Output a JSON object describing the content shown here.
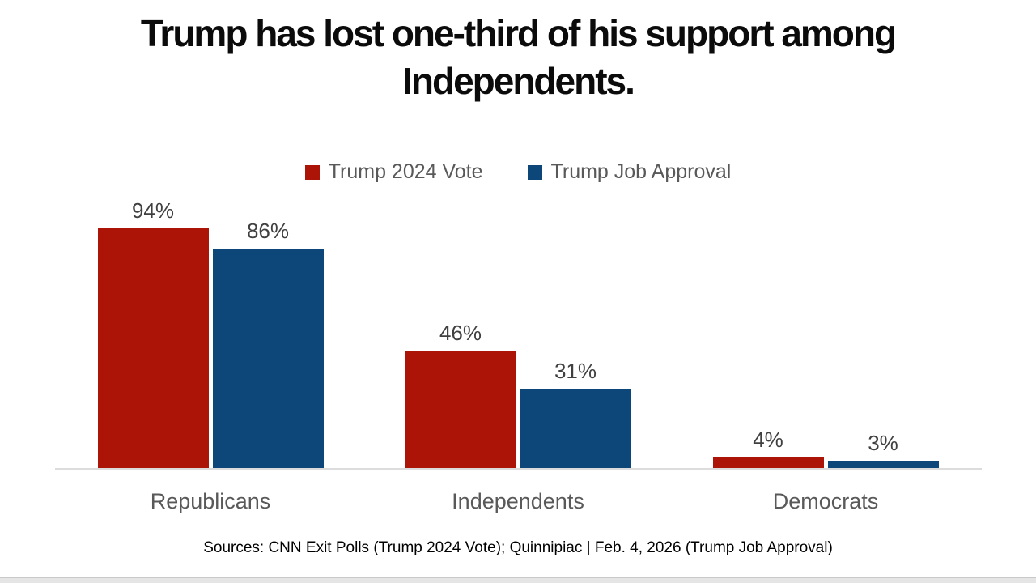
{
  "title": "Trump has lost one-third of his support among Independents.",
  "legend": [
    {
      "label": "Trump 2024 Vote",
      "color": "#ad1408"
    },
    {
      "label": "Trump Job Approval",
      "color": "#0d4679"
    }
  ],
  "chart_data": {
    "type": "bar",
    "title": "Trump has lost one-third of his support among Independents.",
    "categories": [
      "Republicans",
      "Independents",
      "Democrats"
    ],
    "series": [
      {
        "name": "Trump 2024 Vote",
        "color": "#ad1408",
        "values": [
          94,
          46,
          4
        ],
        "value_labels": [
          "94%",
          "46%",
          "4%"
        ]
      },
      {
        "name": "Trump Job Approval",
        "color": "#0d4679",
        "values": [
          86,
          31,
          3
        ],
        "value_labels": [
          "86%",
          "31%",
          "3%"
        ]
      }
    ],
    "xlabel": "",
    "ylabel": "",
    "ylim": [
      0,
      100
    ],
    "grid": false,
    "legend_position": "top",
    "value_label_color": "#404040",
    "category_label_color": "#595959",
    "baseline_color": "#dcdcdc"
  },
  "source": "Sources: CNN Exit Polls (Trump 2024 Vote); Quinnipiac | Feb. 4, 2026 (Trump Job Approval)",
  "footer": {
    "band_color": "#e5e5e5",
    "line_color": "#c9c9c9"
  }
}
